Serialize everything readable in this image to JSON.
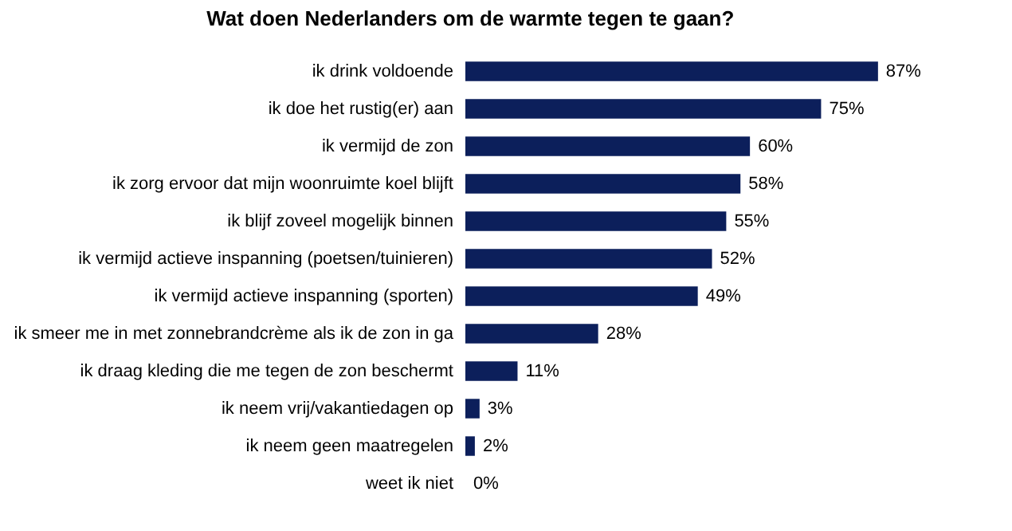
{
  "chart_data": {
    "type": "bar",
    "orientation": "horizontal",
    "title": "Wat doen Nederlanders om de warmte tegen te gaan?",
    "categories": [
      "ik drink voldoende",
      "ik doe het rustig(er) aan",
      "ik vermijd de zon",
      "ik zorg ervoor dat mijn woonruimte koel blijft",
      "ik blijf zoveel mogelijk binnen",
      "ik vermijd actieve inspanning (poetsen/tuinieren)",
      "ik vermijd actieve inspanning (sporten)",
      "ik smeer me in met zonnebrandcrème als ik de zon in ga",
      "ik draag kleding die me tegen de zon beschermt",
      "ik neem vrij/vakantiedagen op",
      "ik neem geen maatregelen",
      "weet ik niet"
    ],
    "values": [
      87,
      75,
      60,
      58,
      55,
      52,
      49,
      28,
      11,
      3,
      2,
      0
    ],
    "value_labels": [
      "87%",
      "75%",
      "60%",
      "58%",
      "55%",
      "52%",
      "49%",
      "28%",
      "11%",
      "3%",
      "2%",
      "0%"
    ],
    "color": "#0c1f5b"
  }
}
